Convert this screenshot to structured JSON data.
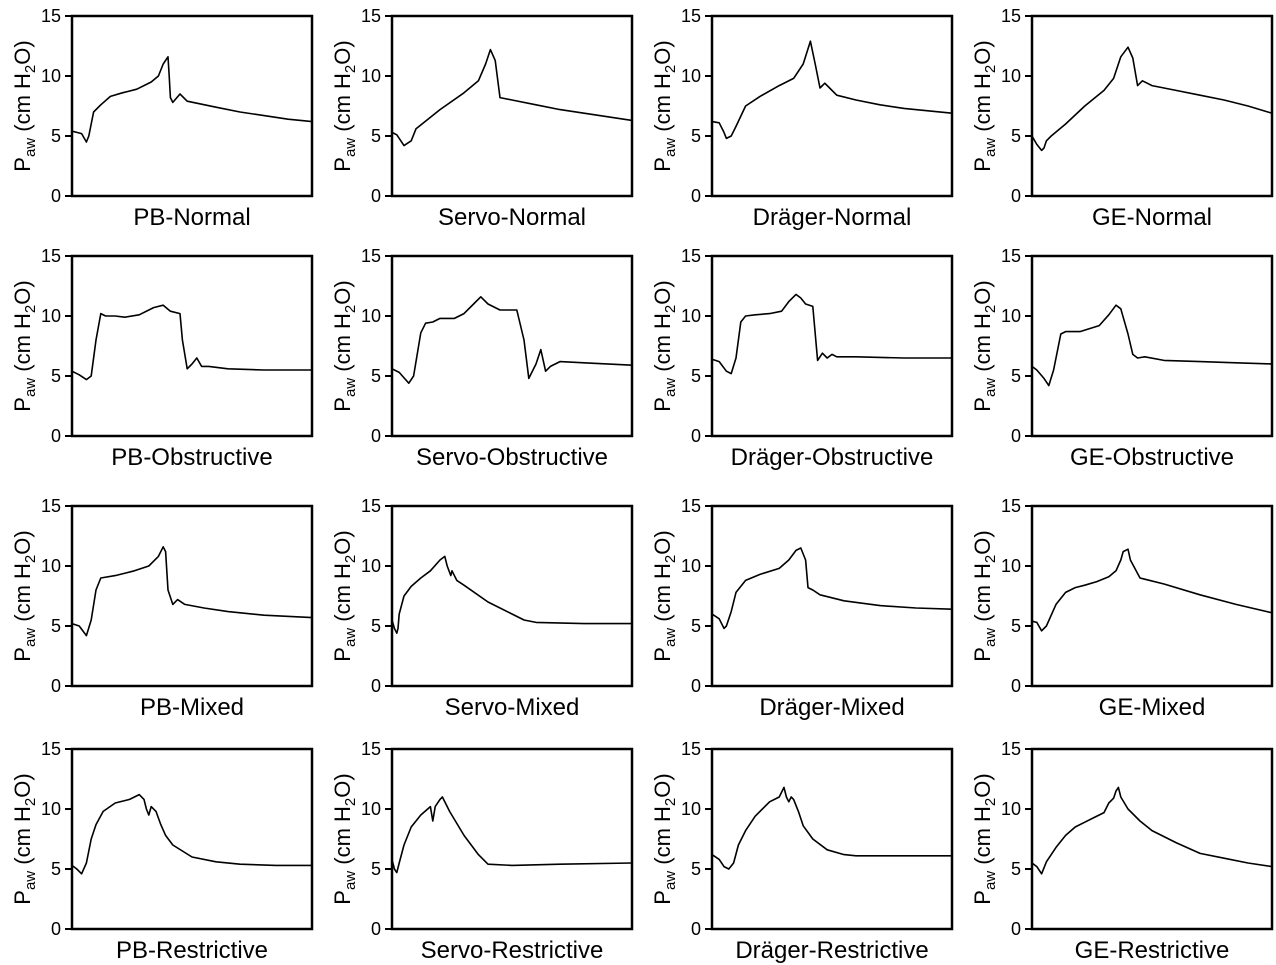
{
  "y_axis_label": {
    "main": "P",
    "subscript": "aw",
    "units_open": "(cm H",
    "units_sub": "2",
    "units_close": "O)"
  },
  "colors": {
    "line": "#000000",
    "frame": "#000000",
    "background": "#ffffff"
  },
  "chart_data": [
    {
      "type": "line",
      "title": "PB-Normal",
      "ylabel": "Paw (cm H2O)",
      "ylim": [
        0,
        15
      ],
      "yticks": [
        0,
        5,
        10,
        15
      ],
      "grid": false,
      "series": [
        {
          "x": [
            0,
            0.02,
            0.04,
            0.06,
            0.07,
            0.09,
            0.12,
            0.16,
            0.21,
            0.27,
            0.33,
            0.36,
            0.38,
            0.4,
            0.405,
            0.41,
            0.42,
            0.45,
            0.48,
            0.6,
            0.7,
            0.8,
            0.9,
            1
          ],
          "values": [
            5.4,
            5.3,
            5.2,
            4.5,
            5.0,
            7.0,
            7.6,
            8.3,
            8.6,
            8.9,
            9.5,
            10.0,
            11.0,
            11.6,
            10.0,
            8.2,
            7.8,
            8.5,
            7.9,
            7.4,
            7.0,
            6.7,
            6.4,
            6.2
          ]
        }
      ]
    },
    {
      "type": "line",
      "title": "Servo-Normal",
      "ylabel": "Paw (cm H2O)",
      "ylim": [
        0,
        15
      ],
      "yticks": [
        0,
        5,
        10,
        15
      ],
      "grid": false,
      "series": [
        {
          "x": [
            0,
            0.02,
            0.05,
            0.08,
            0.1,
            0.2,
            0.3,
            0.36,
            0.39,
            0.41,
            0.43,
            0.45,
            0.5,
            0.6,
            0.7,
            0.8,
            0.9,
            1
          ],
          "values": [
            5.3,
            5.1,
            4.2,
            4.6,
            5.6,
            7.2,
            8.6,
            9.6,
            11.0,
            12.2,
            11.3,
            8.2,
            8.0,
            7.6,
            7.2,
            6.9,
            6.6,
            6.3
          ]
        }
      ]
    },
    {
      "type": "line",
      "title": "Dräger-Normal",
      "ylabel": "Paw (cm H2O)",
      "ylim": [
        0,
        15
      ],
      "yticks": [
        0,
        5,
        10,
        15
      ],
      "grid": false,
      "series": [
        {
          "x": [
            0,
            0.03,
            0.05,
            0.06,
            0.08,
            0.1,
            0.14,
            0.2,
            0.28,
            0.34,
            0.38,
            0.41,
            0.43,
            0.45,
            0.47,
            0.49,
            0.52,
            0.6,
            0.7,
            0.8,
            0.9,
            1
          ],
          "values": [
            6.2,
            6.1,
            5.3,
            4.8,
            5.0,
            5.8,
            7.5,
            8.3,
            9.2,
            9.8,
            11.0,
            12.9,
            11.0,
            9.0,
            9.4,
            9.0,
            8.4,
            8.0,
            7.6,
            7.3,
            7.1,
            6.9
          ]
        }
      ]
    },
    {
      "type": "line",
      "title": "GE-Normal",
      "ylabel": "Paw (cm H2O)",
      "ylim": [
        0,
        15
      ],
      "yticks": [
        0,
        5,
        10,
        15
      ],
      "grid": false,
      "series": [
        {
          "x": [
            0,
            0.02,
            0.04,
            0.05,
            0.06,
            0.08,
            0.14,
            0.22,
            0.3,
            0.34,
            0.37,
            0.4,
            0.42,
            0.44,
            0.46,
            0.48,
            0.5,
            0.6,
            0.7,
            0.8,
            0.9,
            1
          ],
          "values": [
            5.0,
            4.3,
            3.8,
            4.0,
            4.6,
            5.0,
            6.0,
            7.5,
            8.8,
            9.8,
            11.6,
            12.4,
            11.5,
            9.2,
            9.6,
            9.4,
            9.2,
            8.8,
            8.4,
            8.0,
            7.5,
            6.9
          ]
        }
      ]
    },
    {
      "type": "line",
      "title": "PB-Obstructive",
      "ylabel": "Paw (cm H2O)",
      "ylim": [
        0,
        15
      ],
      "yticks": [
        0,
        5,
        10,
        15
      ],
      "grid": false,
      "series": [
        {
          "x": [
            0,
            0.03,
            0.06,
            0.08,
            0.1,
            0.12,
            0.14,
            0.18,
            0.22,
            0.28,
            0.34,
            0.38,
            0.41,
            0.45,
            0.46,
            0.48,
            0.5,
            0.52,
            0.54,
            0.57,
            0.65,
            0.8,
            1
          ],
          "values": [
            5.4,
            5.1,
            4.7,
            5.0,
            8.0,
            10.2,
            10.0,
            10.0,
            9.9,
            10.1,
            10.7,
            10.9,
            10.4,
            10.2,
            8.0,
            5.6,
            6.0,
            6.5,
            5.8,
            5.8,
            5.6,
            5.5,
            5.5
          ]
        }
      ]
    },
    {
      "type": "line",
      "title": "Servo-Obstructive",
      "ylabel": "Paw (cm H2O)",
      "ylim": [
        0,
        15
      ],
      "yticks": [
        0,
        5,
        10,
        15
      ],
      "grid": false,
      "series": [
        {
          "x": [
            0,
            0.03,
            0.07,
            0.09,
            0.12,
            0.14,
            0.17,
            0.2,
            0.26,
            0.3,
            0.34,
            0.37,
            0.4,
            0.45,
            0.52,
            0.55,
            0.57,
            0.6,
            0.62,
            0.64,
            0.66,
            0.7,
            0.8,
            1
          ],
          "values": [
            5.6,
            5.3,
            4.4,
            5.0,
            8.6,
            9.4,
            9.5,
            9.8,
            9.8,
            10.2,
            11.0,
            11.6,
            11.0,
            10.5,
            10.5,
            8.0,
            4.8,
            6.0,
            7.2,
            5.4,
            5.8,
            6.2,
            6.1,
            5.9
          ]
        }
      ]
    },
    {
      "type": "line",
      "title": "Dräger-Obstructive",
      "ylabel": "Paw (cm H2O)",
      "ylim": [
        0,
        15
      ],
      "yticks": [
        0,
        5,
        10,
        15
      ],
      "grid": false,
      "series": [
        {
          "x": [
            0,
            0.03,
            0.06,
            0.08,
            0.1,
            0.12,
            0.14,
            0.18,
            0.24,
            0.29,
            0.32,
            0.35,
            0.37,
            0.39,
            0.42,
            0.44,
            0.46,
            0.48,
            0.5,
            0.52,
            0.6,
            0.8,
            1
          ],
          "values": [
            6.4,
            6.2,
            5.4,
            5.2,
            6.5,
            9.5,
            10.0,
            10.1,
            10.2,
            10.4,
            11.2,
            11.8,
            11.5,
            11.0,
            10.8,
            6.3,
            6.9,
            6.5,
            6.8,
            6.6,
            6.6,
            6.5,
            6.5
          ]
        }
      ]
    },
    {
      "type": "line",
      "title": "GE-Obstructive",
      "ylabel": "Paw (cm H2O)",
      "ylim": [
        0,
        15
      ],
      "yticks": [
        0,
        5,
        10,
        15
      ],
      "grid": false,
      "series": [
        {
          "x": [
            0,
            0.02,
            0.05,
            0.07,
            0.09,
            0.12,
            0.14,
            0.2,
            0.28,
            0.32,
            0.35,
            0.37,
            0.4,
            0.42,
            0.44,
            0.47,
            0.55,
            0.7,
            0.85,
            1
          ],
          "values": [
            5.8,
            5.5,
            4.8,
            4.2,
            5.5,
            8.5,
            8.7,
            8.7,
            9.2,
            10.1,
            10.9,
            10.6,
            8.5,
            6.8,
            6.5,
            6.6,
            6.3,
            6.2,
            6.1,
            6.0
          ]
        }
      ]
    },
    {
      "type": "line",
      "title": "PB-Mixed",
      "ylabel": "Paw (cm H2O)",
      "ylim": [
        0,
        15
      ],
      "yticks": [
        0,
        5,
        10,
        15
      ],
      "grid": false,
      "series": [
        {
          "x": [
            0,
            0.03,
            0.06,
            0.08,
            0.1,
            0.12,
            0.18,
            0.26,
            0.32,
            0.36,
            0.38,
            0.39,
            0.4,
            0.42,
            0.44,
            0.47,
            0.55,
            0.65,
            0.8,
            1
          ],
          "values": [
            5.2,
            5.0,
            4.2,
            5.5,
            8.0,
            9.0,
            9.2,
            9.6,
            10.0,
            10.8,
            11.6,
            11.2,
            8.0,
            6.8,
            7.2,
            6.8,
            6.5,
            6.2,
            5.9,
            5.7
          ]
        }
      ]
    },
    {
      "type": "line",
      "title": "Servo-Mixed",
      "ylabel": "Paw (cm H2O)",
      "ylim": [
        0,
        15
      ],
      "yticks": [
        0,
        5,
        10,
        15
      ],
      "grid": false,
      "series": [
        {
          "x": [
            0,
            0.01,
            0.02,
            0.025,
            0.03,
            0.05,
            0.08,
            0.12,
            0.16,
            0.2,
            0.22,
            0.23,
            0.245,
            0.25,
            0.27,
            0.3,
            0.4,
            0.5,
            0.55,
            0.6,
            0.8,
            1
          ],
          "values": [
            5.5,
            4.8,
            4.4,
            4.8,
            6.0,
            7.5,
            8.3,
            9.0,
            9.6,
            10.5,
            10.8,
            10.0,
            9.2,
            9.6,
            8.8,
            8.4,
            7.0,
            6.0,
            5.5,
            5.3,
            5.2,
            5.2
          ]
        }
      ]
    },
    {
      "type": "line",
      "title": "Dräger-Mixed",
      "ylabel": "Paw (cm H2O)",
      "ylim": [
        0,
        15
      ],
      "yticks": [
        0,
        5,
        10,
        15
      ],
      "grid": false,
      "series": [
        {
          "x": [
            0,
            0.03,
            0.05,
            0.06,
            0.08,
            0.1,
            0.14,
            0.2,
            0.28,
            0.32,
            0.35,
            0.37,
            0.39,
            0.4,
            0.42,
            0.45,
            0.55,
            0.7,
            0.85,
            1
          ],
          "values": [
            6.0,
            5.6,
            4.8,
            5.0,
            6.2,
            7.8,
            8.8,
            9.3,
            9.8,
            10.5,
            11.3,
            11.5,
            10.5,
            8.2,
            8.0,
            7.6,
            7.1,
            6.7,
            6.5,
            6.4
          ]
        }
      ]
    },
    {
      "type": "line",
      "title": "GE-Mixed",
      "ylabel": "Paw (cm H2O)",
      "ylim": [
        0,
        15
      ],
      "yticks": [
        0,
        5,
        10,
        15
      ],
      "grid": false,
      "series": [
        {
          "x": [
            0,
            0.02,
            0.04,
            0.06,
            0.1,
            0.14,
            0.18,
            0.22,
            0.27,
            0.32,
            0.35,
            0.37,
            0.38,
            0.4,
            0.41,
            0.45,
            0.55,
            0.7,
            0.85,
            1
          ],
          "values": [
            5.4,
            5.3,
            4.6,
            5.0,
            6.8,
            7.8,
            8.2,
            8.4,
            8.7,
            9.1,
            9.6,
            10.5,
            11.2,
            11.4,
            10.5,
            9.0,
            8.5,
            7.6,
            6.8,
            6.1
          ]
        }
      ]
    },
    {
      "type": "line",
      "title": "PB-Restrictive",
      "ylabel": "Paw (cm H2O)",
      "ylim": [
        0,
        15
      ],
      "yticks": [
        0,
        5,
        10,
        15
      ],
      "grid": false,
      "series": [
        {
          "x": [
            0,
            0.02,
            0.04,
            0.06,
            0.08,
            0.1,
            0.13,
            0.18,
            0.24,
            0.28,
            0.3,
            0.31,
            0.32,
            0.33,
            0.35,
            0.37,
            0.39,
            0.42,
            0.46,
            0.5,
            0.6,
            0.7,
            0.85,
            1
          ],
          "values": [
            5.3,
            5.0,
            4.6,
            5.5,
            7.5,
            8.7,
            9.8,
            10.5,
            10.8,
            11.2,
            10.8,
            10.0,
            9.5,
            10.2,
            9.8,
            8.7,
            7.8,
            7.0,
            6.5,
            6.0,
            5.6,
            5.4,
            5.3,
            5.3
          ]
        }
      ]
    },
    {
      "type": "line",
      "title": "Servo-Restrictive",
      "ylabel": "Paw (cm H2O)",
      "ylim": [
        0,
        15
      ],
      "yticks": [
        0,
        5,
        10,
        15
      ],
      "grid": false,
      "series": [
        {
          "x": [
            0,
            0.01,
            0.02,
            0.03,
            0.05,
            0.08,
            0.12,
            0.16,
            0.17,
            0.18,
            0.2,
            0.21,
            0.24,
            0.3,
            0.36,
            0.4,
            0.5,
            0.7,
            1
          ],
          "values": [
            5.8,
            5.0,
            4.7,
            5.5,
            7.0,
            8.5,
            9.5,
            10.2,
            9.0,
            10.2,
            10.8,
            11.0,
            9.8,
            7.8,
            6.2,
            5.4,
            5.3,
            5.4,
            5.5
          ]
        }
      ]
    },
    {
      "type": "line",
      "title": "Dräger-Restrictive",
      "ylabel": "Paw (cm H2O)",
      "ylim": [
        0,
        15
      ],
      "yticks": [
        0,
        5,
        10,
        15
      ],
      "grid": false,
      "series": [
        {
          "x": [
            0,
            0.03,
            0.05,
            0.07,
            0.09,
            0.11,
            0.14,
            0.18,
            0.24,
            0.28,
            0.3,
            0.31,
            0.32,
            0.33,
            0.34,
            0.36,
            0.38,
            0.42,
            0.48,
            0.55,
            0.6,
            0.8,
            1
          ],
          "values": [
            6.2,
            5.8,
            5.2,
            5.0,
            5.5,
            7.0,
            8.2,
            9.4,
            10.6,
            11.0,
            11.8,
            11.0,
            10.6,
            11.0,
            10.8,
            9.8,
            8.6,
            7.5,
            6.6,
            6.2,
            6.1,
            6.1,
            6.1
          ]
        }
      ]
    },
    {
      "type": "line",
      "title": "GE-Restrictive",
      "ylabel": "Paw (cm H2O)",
      "ylim": [
        0,
        15
      ],
      "yticks": [
        0,
        5,
        10,
        15
      ],
      "grid": false,
      "series": [
        {
          "x": [
            0,
            0.02,
            0.04,
            0.06,
            0.1,
            0.14,
            0.18,
            0.22,
            0.26,
            0.3,
            0.32,
            0.34,
            0.35,
            0.36,
            0.37,
            0.4,
            0.45,
            0.5,
            0.6,
            0.7,
            0.8,
            0.9,
            1
          ],
          "values": [
            5.5,
            5.2,
            4.6,
            5.6,
            6.8,
            7.8,
            8.5,
            8.9,
            9.3,
            9.7,
            10.5,
            10.9,
            11.5,
            11.8,
            11.0,
            10.0,
            9.0,
            8.2,
            7.2,
            6.3,
            5.9,
            5.5,
            5.2
          ]
        }
      ]
    }
  ]
}
